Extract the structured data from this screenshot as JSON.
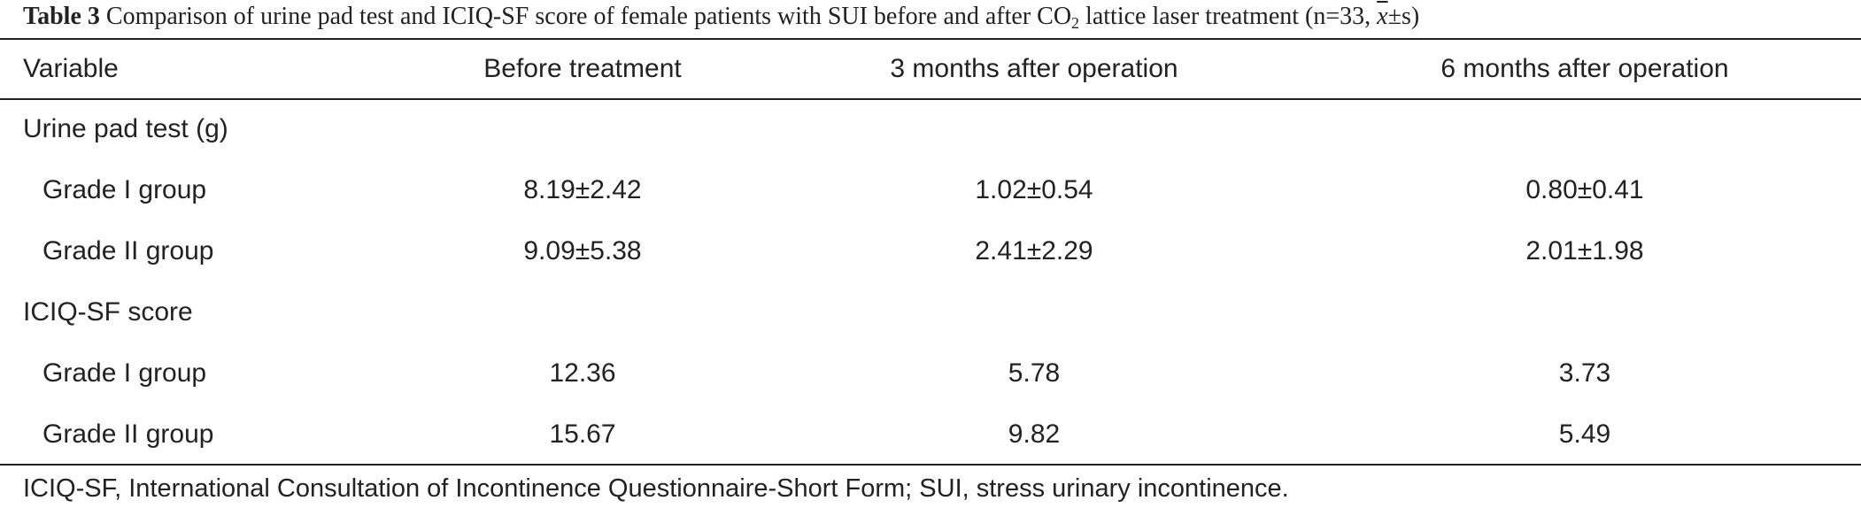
{
  "caption": {
    "table_number": "Table 3",
    "text_before_subscript": "Comparison of urine pad test and ICIQ-SF score of female patients with SUI before and after CO",
    "subscript": "2",
    "text_after_subscript": " lattice laser treatment (n=33, ",
    "mean_symbol": "x",
    "text_end": "±s)"
  },
  "table": {
    "headers": [
      "Variable",
      "Before treatment",
      "3 months after operation",
      "6 months after operation"
    ],
    "sections": [
      {
        "label": "Urine pad test (g)",
        "rows": [
          {
            "label": "Grade I group",
            "values": [
              "8.19±2.42",
              "1.02±0.54",
              "0.80±0.41"
            ]
          },
          {
            "label": "Grade II group",
            "values": [
              "9.09±5.38",
              "2.41±2.29",
              "2.01±1.98"
            ]
          }
        ]
      },
      {
        "label": "ICIQ-SF score",
        "rows": [
          {
            "label": "Grade I group",
            "values": [
              "12.36",
              "5.78",
              "3.73"
            ]
          },
          {
            "label": "Grade II group",
            "values": [
              "15.67",
              "9.82",
              "5.49"
            ]
          }
        ]
      }
    ]
  },
  "footnote": "ICIQ-SF, International Consultation of Incontinence Questionnaire-Short Form; SUI, stress urinary incontinence.",
  "colors": {
    "text": "#222222",
    "rules": "#222222",
    "background": "#ffffff"
  }
}
